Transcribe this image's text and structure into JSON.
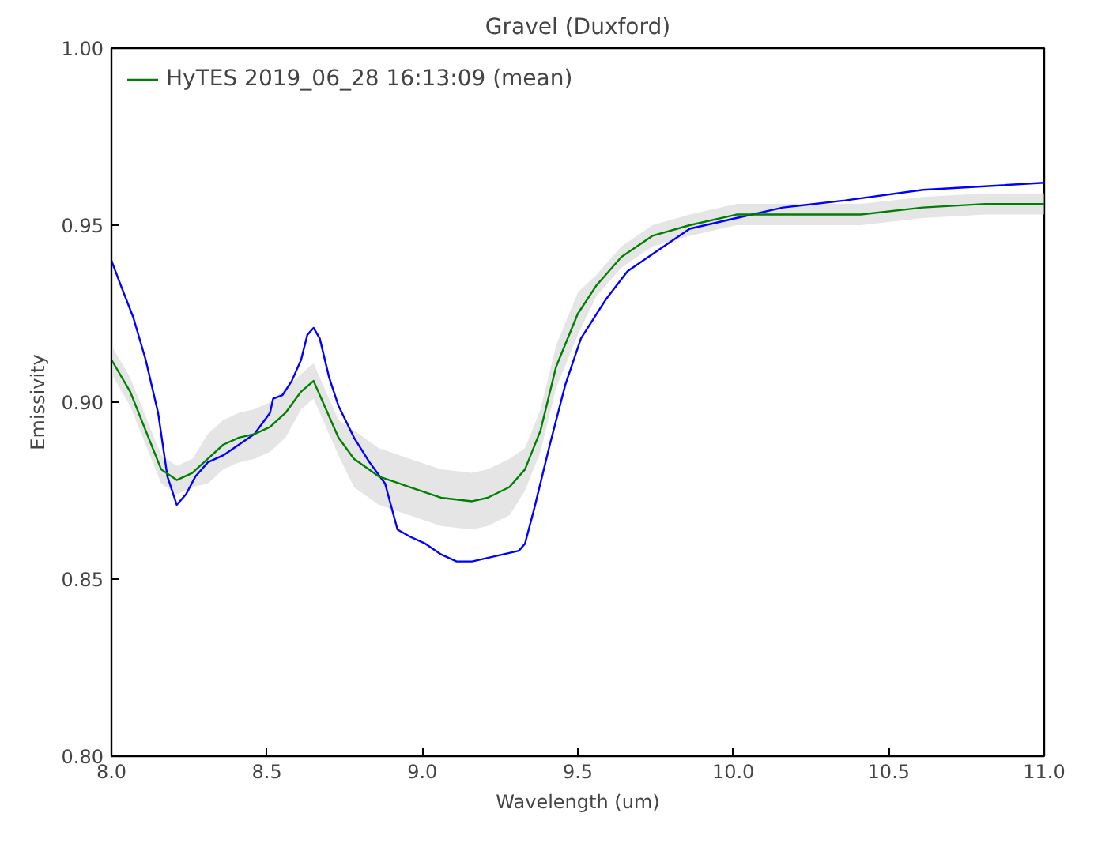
{
  "chart_data": {
    "type": "line",
    "title": "Gravel (Duxford)",
    "xlabel": "Wavelength (um)",
    "ylabel": "Emissivity",
    "xlim": [
      8.0,
      11.0
    ],
    "ylim": [
      0.8,
      1.0
    ],
    "xticks": [
      {
        "value": 8.0,
        "label": "8.0"
      },
      {
        "value": 8.5,
        "label": "8.5"
      },
      {
        "value": 9.0,
        "label": "9.0"
      },
      {
        "value": 9.5,
        "label": "9.5"
      },
      {
        "value": 10.0,
        "label": "10.0"
      },
      {
        "value": 10.5,
        "label": "10.5"
      },
      {
        "value": 11.0,
        "label": "11.0"
      }
    ],
    "yticks": [
      {
        "value": 0.8,
        "label": "0.80"
      },
      {
        "value": 0.85,
        "label": "0.85"
      },
      {
        "value": 0.9,
        "label": "0.90"
      },
      {
        "value": 0.95,
        "label": "0.95"
      },
      {
        "value": 1.0,
        "label": "1.00"
      }
    ],
    "grid": false,
    "legend": "top left",
    "marker": "none",
    "line_style": "solid",
    "series": [
      {
        "color": "#0000ff",
        "x": [
          8.0,
          8.03,
          8.07,
          8.11,
          8.15,
          8.18,
          8.21,
          8.24,
          8.27,
          8.31,
          8.36,
          8.41,
          8.46,
          8.51,
          8.52,
          8.55,
          8.58,
          8.61,
          8.63,
          8.65,
          8.67,
          8.7,
          8.73,
          8.78,
          8.83,
          8.88,
          8.92,
          8.96,
          9.01,
          9.06,
          9.11,
          9.16,
          9.21,
          9.26,
          9.31,
          9.33,
          9.36,
          9.41,
          9.46,
          9.51,
          9.59,
          9.66,
          9.76,
          9.86,
          10.01,
          10.16,
          10.36,
          10.61,
          10.81,
          11.0
        ],
        "values": [
          0.94,
          0.933,
          0.924,
          0.912,
          0.897,
          0.879,
          0.871,
          0.874,
          0.879,
          0.883,
          0.885,
          0.888,
          0.891,
          0.897,
          0.901,
          0.902,
          0.906,
          0.912,
          0.919,
          0.921,
          0.918,
          0.907,
          0.899,
          0.89,
          0.883,
          0.877,
          0.864,
          0.862,
          0.86,
          0.857,
          0.855,
          0.855,
          0.856,
          0.857,
          0.858,
          0.86,
          0.87,
          0.888,
          0.905,
          0.918,
          0.929,
          0.937,
          0.943,
          0.949,
          0.952,
          0.955,
          0.957,
          0.96,
          0.961,
          0.962
        ]
      },
      {
        "name": "HyTES 2019_06_28 16:13:09 (mean)",
        "color": "#008000",
        "x": [
          8.0,
          8.06,
          8.11,
          8.16,
          8.21,
          8.26,
          8.31,
          8.36,
          8.41,
          8.46,
          8.51,
          8.56,
          8.61,
          8.65,
          8.68,
          8.73,
          8.78,
          8.86,
          8.96,
          9.06,
          9.16,
          9.21,
          9.28,
          9.33,
          9.38,
          9.43,
          9.5,
          9.56,
          9.64,
          9.74,
          9.86,
          10.01,
          10.21,
          10.41,
          10.61,
          10.81,
          11.0
        ],
        "values": [
          0.912,
          0.903,
          0.892,
          0.881,
          0.878,
          0.88,
          0.884,
          0.888,
          0.89,
          0.891,
          0.893,
          0.897,
          0.903,
          0.906,
          0.9,
          0.89,
          0.884,
          0.879,
          0.876,
          0.873,
          0.872,
          0.873,
          0.876,
          0.881,
          0.892,
          0.91,
          0.925,
          0.933,
          0.941,
          0.947,
          0.95,
          0.953,
          0.953,
          0.953,
          0.955,
          0.956,
          0.956
        ],
        "lower": [
          0.908,
          0.899,
          0.888,
          0.877,
          0.874,
          0.876,
          0.877,
          0.881,
          0.883,
          0.884,
          0.886,
          0.89,
          0.898,
          0.901,
          0.895,
          0.885,
          0.876,
          0.871,
          0.868,
          0.865,
          0.864,
          0.865,
          0.868,
          0.875,
          0.886,
          0.904,
          0.919,
          0.93,
          0.938,
          0.944,
          0.947,
          0.95,
          0.95,
          0.95,
          0.952,
          0.953,
          0.953
        ],
        "upper": [
          0.916,
          0.907,
          0.896,
          0.885,
          0.882,
          0.884,
          0.891,
          0.895,
          0.897,
          0.898,
          0.9,
          0.904,
          0.908,
          0.911,
          0.905,
          0.895,
          0.892,
          0.887,
          0.884,
          0.881,
          0.88,
          0.881,
          0.884,
          0.887,
          0.898,
          0.916,
          0.931,
          0.936,
          0.944,
          0.95,
          0.953,
          0.956,
          0.956,
          0.956,
          0.958,
          0.959,
          0.959
        ]
      }
    ]
  }
}
